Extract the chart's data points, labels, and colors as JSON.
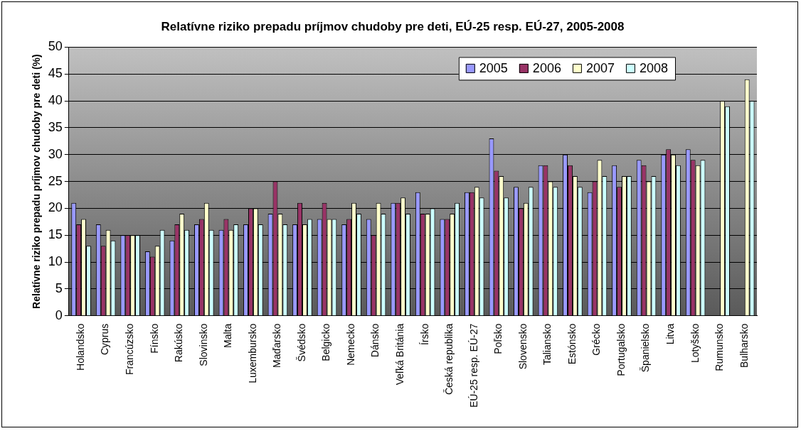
{
  "chart_data": {
    "type": "bar",
    "title": "Relatívne riziko prepadu príjmov chudoby pre deti, EÚ-25 resp. EÚ-27, 2005-2008",
    "ylabel": "Relatívne riziko prepadu príjmov chudoby pre deti (%)",
    "categories": [
      "Holandsko",
      "Cyprus",
      "Francúzsko",
      "Fínsko",
      "Rakúsko",
      "Slovinsko",
      "Malta",
      "Luxembursko",
      "Maďarsko",
      "Švédsko",
      "Belgicko",
      "Nemecko",
      "Dánsko",
      "Veľká Británia",
      "Írsko",
      "Česká republika",
      "EÚ-25 resp. EÚ-27",
      "Poľsko",
      "Slovensko",
      "Taliansko",
      "Estónsko",
      "Grécko",
      "Portugalsko",
      "Španielsko",
      "Litva",
      "Lotyšsko",
      "Rumunsko",
      "Bulharsko"
    ],
    "series": [
      {
        "name": "2005",
        "color": "#9999ff",
        "values": [
          21,
          17,
          15,
          12,
          14,
          17,
          16,
          17,
          19,
          17,
          18,
          17,
          18,
          21,
          23,
          18,
          23,
          33,
          24,
          28,
          30,
          23,
          28,
          29,
          30,
          31,
          null,
          null
        ]
      },
      {
        "name": "2006",
        "color": "#993366",
        "values": [
          17,
          13,
          15,
          11,
          17,
          18,
          18,
          20,
          25,
          21,
          21,
          18,
          15,
          21,
          19,
          18,
          23,
          27,
          20,
          28,
          28,
          25,
          24,
          28,
          31,
          29,
          null,
          null
        ]
      },
      {
        "name": "2007",
        "color": "#ffffcc",
        "values": [
          18,
          16,
          15,
          13,
          19,
          21,
          16,
          20,
          19,
          17,
          18,
          21,
          21,
          22,
          19,
          19,
          24,
          26,
          21,
          25,
          26,
          29,
          26,
          25,
          30,
          28,
          40,
          44
        ]
      },
      {
        "name": "2008",
        "color": "#ccffff",
        "values": [
          13,
          14,
          15,
          16,
          16,
          16,
          17,
          17,
          17,
          18,
          18,
          19,
          19,
          19,
          20,
          21,
          22,
          22,
          24,
          24,
          24,
          26,
          26,
          26,
          28,
          29,
          39,
          40
        ]
      }
    ],
    "ylim": [
      0,
      50
    ],
    "yticks": [
      0,
      5,
      10,
      15,
      20,
      25,
      30,
      35,
      40,
      45,
      50
    ],
    "grid": "y",
    "legend": "top right"
  }
}
